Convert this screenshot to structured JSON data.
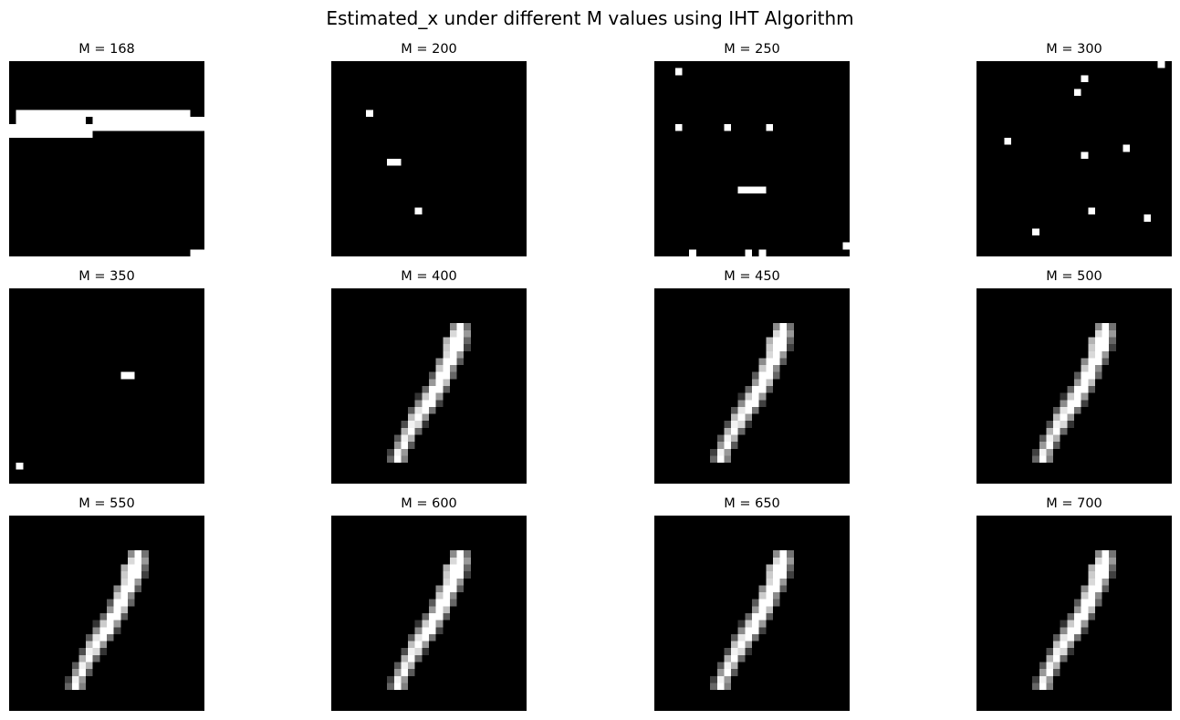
{
  "figure": {
    "title": "Estimated_x under different M values using IHT Algorithm",
    "grid_size": 28,
    "background_color": "#000000",
    "panels": [
      {
        "title": "M = 168",
        "pixels": [
          [
            1,
            7,
            25,
            7,
            1.0
          ],
          [
            1,
            8,
            8,
            8,
            1.0
          ],
          [
            9,
            8,
            10,
            8,
            1.0
          ],
          [
            12,
            8,
            27,
            8,
            1.0
          ],
          [
            0,
            9,
            27,
            9,
            1.0
          ],
          [
            0,
            10,
            11,
            10,
            1.0
          ],
          [
            26,
            27,
            27,
            27,
            1.0
          ]
        ]
      },
      {
        "title": "M = 200",
        "pixels": [
          [
            5,
            7,
            5,
            7,
            1.0
          ],
          [
            8,
            14,
            9,
            14,
            1.0
          ],
          [
            12,
            21,
            12,
            21,
            1.0
          ]
        ]
      },
      {
        "title": "M = 250",
        "pixels": [
          [
            3,
            1,
            3,
            1,
            1.0
          ],
          [
            3,
            9,
            3,
            9,
            1.0
          ],
          [
            10,
            9,
            10,
            9,
            1.0
          ],
          [
            16,
            9,
            16,
            9,
            1.0
          ],
          [
            12,
            18,
            15,
            18,
            1.0
          ],
          [
            27,
            26,
            27,
            26,
            1.0
          ],
          [
            5,
            27,
            5,
            27,
            1.0
          ],
          [
            13,
            27,
            13,
            27,
            1.0
          ],
          [
            15,
            27,
            15,
            27,
            1.0
          ]
        ]
      },
      {
        "title": "M = 300",
        "pixels": [
          [
            26,
            0,
            26,
            0,
            1.0
          ],
          [
            15,
            2,
            15,
            2,
            1.0
          ],
          [
            14,
            4,
            14,
            4,
            1.0
          ],
          [
            4,
            11,
            4,
            11,
            1.0
          ],
          [
            21,
            12,
            21,
            12,
            1.0
          ],
          [
            15,
            13,
            15,
            13,
            1.0
          ],
          [
            16,
            21,
            16,
            21,
            1.0
          ],
          [
            24,
            22,
            24,
            22,
            1.0
          ],
          [
            8,
            24,
            8,
            24,
            1.0
          ]
        ]
      },
      {
        "title": "M = 350",
        "pixels": [
          [
            16,
            12,
            17,
            12,
            1.0
          ],
          [
            1,
            25,
            1,
            25,
            1.0
          ]
        ]
      },
      {
        "title": "M = 400",
        "pixels": "digit"
      },
      {
        "title": "M = 450",
        "pixels": "digit"
      },
      {
        "title": "M = 500",
        "pixels": "digit"
      },
      {
        "title": "M = 550",
        "pixels": "digit"
      },
      {
        "title": "M = 600",
        "pixels": "digit"
      },
      {
        "title": "M = 650",
        "pixels": "digit"
      },
      {
        "title": "M = 700",
        "pixels": "digit"
      }
    ],
    "digit_pixels": [
      [
        17,
        5,
        17,
        5,
        0.55
      ],
      [
        18,
        5,
        18,
        5,
        1.0
      ],
      [
        19,
        5,
        19,
        5,
        0.45
      ],
      [
        17,
        6,
        17,
        6,
        0.85
      ],
      [
        18,
        6,
        18,
        6,
        1.0
      ],
      [
        19,
        6,
        19,
        6,
        0.6
      ],
      [
        16,
        7,
        16,
        7,
        0.7
      ],
      [
        17,
        7,
        18,
        7,
        1.0
      ],
      [
        19,
        7,
        19,
        7,
        0.4
      ],
      [
        16,
        8,
        16,
        8,
        0.8
      ],
      [
        17,
        8,
        18,
        8,
        1.0
      ],
      [
        19,
        8,
        19,
        8,
        0.25
      ],
      [
        16,
        9,
        16,
        9,
        0.85
      ],
      [
        17,
        9,
        17,
        9,
        1.0
      ],
      [
        18,
        9,
        18,
        9,
        0.6
      ],
      [
        15,
        10,
        15,
        10,
        0.55
      ],
      [
        16,
        10,
        17,
        10,
        1.0
      ],
      [
        18,
        10,
        18,
        10,
        0.35
      ],
      [
        15,
        11,
        15,
        11,
        0.8
      ],
      [
        16,
        11,
        16,
        11,
        1.0
      ],
      [
        17,
        11,
        17,
        11,
        0.55
      ],
      [
        14,
        12,
        14,
        12,
        0.35
      ],
      [
        15,
        12,
        16,
        12,
        1.0
      ],
      [
        17,
        12,
        17,
        12,
        0.4
      ],
      [
        14,
        13,
        14,
        13,
        0.6
      ],
      [
        15,
        13,
        15,
        13,
        1.0
      ],
      [
        16,
        13,
        16,
        13,
        0.75
      ],
      [
        13,
        14,
        13,
        14,
        0.4
      ],
      [
        14,
        14,
        15,
        14,
        1.0
      ],
      [
        16,
        14,
        16,
        14,
        0.35
      ],
      [
        12,
        15,
        12,
        15,
        0.2
      ],
      [
        13,
        15,
        13,
        15,
        0.8
      ],
      [
        14,
        15,
        14,
        15,
        1.0
      ],
      [
        15,
        15,
        15,
        15,
        0.6
      ],
      [
        12,
        16,
        12,
        16,
        0.55
      ],
      [
        13,
        16,
        14,
        16,
        1.0
      ],
      [
        15,
        16,
        15,
        16,
        0.25
      ],
      [
        11,
        17,
        11,
        17,
        0.35
      ],
      [
        12,
        17,
        12,
        17,
        0.9
      ],
      [
        13,
        17,
        13,
        17,
        1.0
      ],
      [
        14,
        17,
        14,
        17,
        0.45
      ],
      [
        11,
        18,
        11,
        18,
        0.75
      ],
      [
        12,
        18,
        12,
        18,
        1.0
      ],
      [
        13,
        18,
        13,
        18,
        0.6
      ],
      [
        10,
        19,
        10,
        19,
        0.3
      ],
      [
        11,
        19,
        11,
        19,
        0.95
      ],
      [
        12,
        19,
        12,
        19,
        0.85
      ],
      [
        13,
        19,
        13,
        19,
        0.2
      ],
      [
        10,
        20,
        10,
        20,
        0.7
      ],
      [
        11,
        20,
        11,
        20,
        1.0
      ],
      [
        12,
        20,
        12,
        20,
        0.4
      ],
      [
        9,
        21,
        9,
        21,
        0.35
      ],
      [
        10,
        21,
        10,
        21,
        0.95
      ],
      [
        11,
        21,
        11,
        21,
        0.7
      ],
      [
        9,
        22,
        9,
        22,
        0.6
      ],
      [
        10,
        22,
        10,
        22,
        1.0
      ],
      [
        11,
        22,
        11,
        22,
        0.35
      ],
      [
        8,
        23,
        8,
        23,
        0.25
      ],
      [
        9,
        23,
        9,
        23,
        0.95
      ],
      [
        10,
        23,
        10,
        23,
        0.6
      ],
      [
        8,
        24,
        8,
        24,
        0.4
      ],
      [
        9,
        24,
        9,
        24,
        1.0
      ],
      [
        10,
        24,
        10,
        24,
        0.5
      ]
    ]
  }
}
